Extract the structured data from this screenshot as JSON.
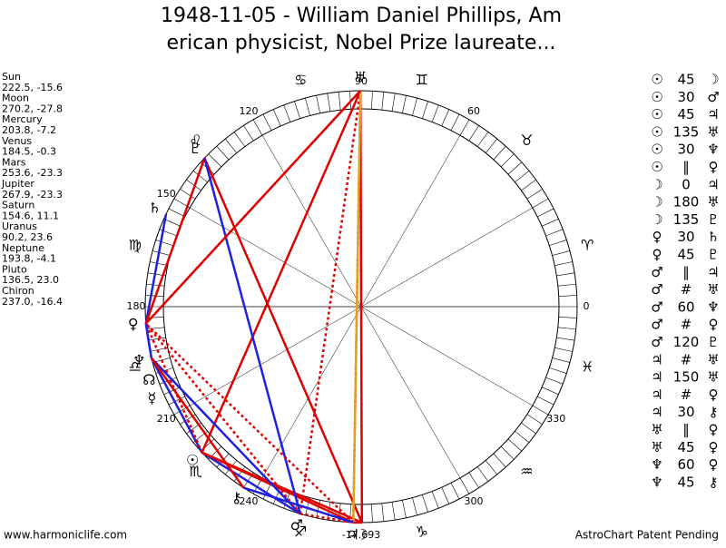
{
  "header": {
    "title_lines": [
      "1948-11-05 - William Daniel Phillips, Am",
      "erican physicist, Nobel Prize laureate..."
    ]
  },
  "planets": [
    {
      "name": "Sun",
      "coords": "222.5, -15.6",
      "glyph": "☉"
    },
    {
      "name": "Moon",
      "coords": "270.2, -27.8",
      "glyph": "☽"
    },
    {
      "name": "Mercury",
      "coords": "203.8, -7.2",
      "glyph": "☿"
    },
    {
      "name": "Venus",
      "coords": "184.5, -0.3",
      "glyph": "♀"
    },
    {
      "name": "Mars",
      "coords": "253.6, -23.3",
      "glyph": "♂"
    },
    {
      "name": "Jupiter",
      "coords": "267.9, -23.3",
      "glyph": "♃"
    },
    {
      "name": "Saturn",
      "coords": "154.6, 11.1",
      "glyph": "♄"
    },
    {
      "name": "Uranus",
      "coords": "90.2, 23.6",
      "glyph": "♅"
    },
    {
      "name": "Neptune",
      "coords": "193.8, -4.1",
      "glyph": "♆"
    },
    {
      "name": "Pluto",
      "coords": "136.5, 23.0",
      "glyph": "♇"
    },
    {
      "name": "Chiron",
      "coords": "237.0, -16.4",
      "glyph": "⚷"
    }
  ],
  "node_glyph": "☊",
  "signs": [
    "♈",
    "♉",
    "♊",
    "♋",
    "♌",
    "♍",
    "♎",
    "♏",
    "♐",
    "♑",
    "♒",
    "♓"
  ],
  "degree_labels": [
    0,
    60,
    90,
    120,
    150,
    180,
    210,
    240,
    300,
    330
  ],
  "bottom_label": "-17.693",
  "aspects": [
    [
      "☉",
      "45",
      "☽"
    ],
    [
      "☉",
      "30",
      "♂"
    ],
    [
      "☉",
      "45",
      "♃"
    ],
    [
      "☉",
      "135",
      "♅"
    ],
    [
      "☉",
      "30",
      "♆"
    ],
    [
      "☉",
      "‖",
      "♀"
    ],
    [
      "☽",
      "0",
      "♃"
    ],
    [
      "☽",
      "180",
      "♅"
    ],
    [
      "☽",
      "135",
      "♇"
    ],
    [
      "♀",
      "30",
      "♄"
    ],
    [
      "♀",
      "45",
      "♇"
    ],
    [
      "♂",
      "‖",
      "♃"
    ],
    [
      "♂",
      "#",
      "♅"
    ],
    [
      "♂",
      "60",
      "♆"
    ],
    [
      "♂",
      "#",
      "♀"
    ],
    [
      "♂",
      "120",
      "♇"
    ],
    [
      "♃",
      "#",
      "♅"
    ],
    [
      "♃",
      "150",
      "♅"
    ],
    [
      "♃",
      "#",
      "♀"
    ],
    [
      "♃",
      "30",
      "⚷"
    ],
    [
      "♅",
      "‖",
      "♀"
    ],
    [
      "♅",
      "45",
      "♀"
    ],
    [
      "♆",
      "60",
      "♀"
    ],
    [
      "♆",
      "45",
      "⚷"
    ]
  ],
  "footer": {
    "left": "www.harmoniclife.com",
    "right": "AstroChart Patent Pending"
  }
}
